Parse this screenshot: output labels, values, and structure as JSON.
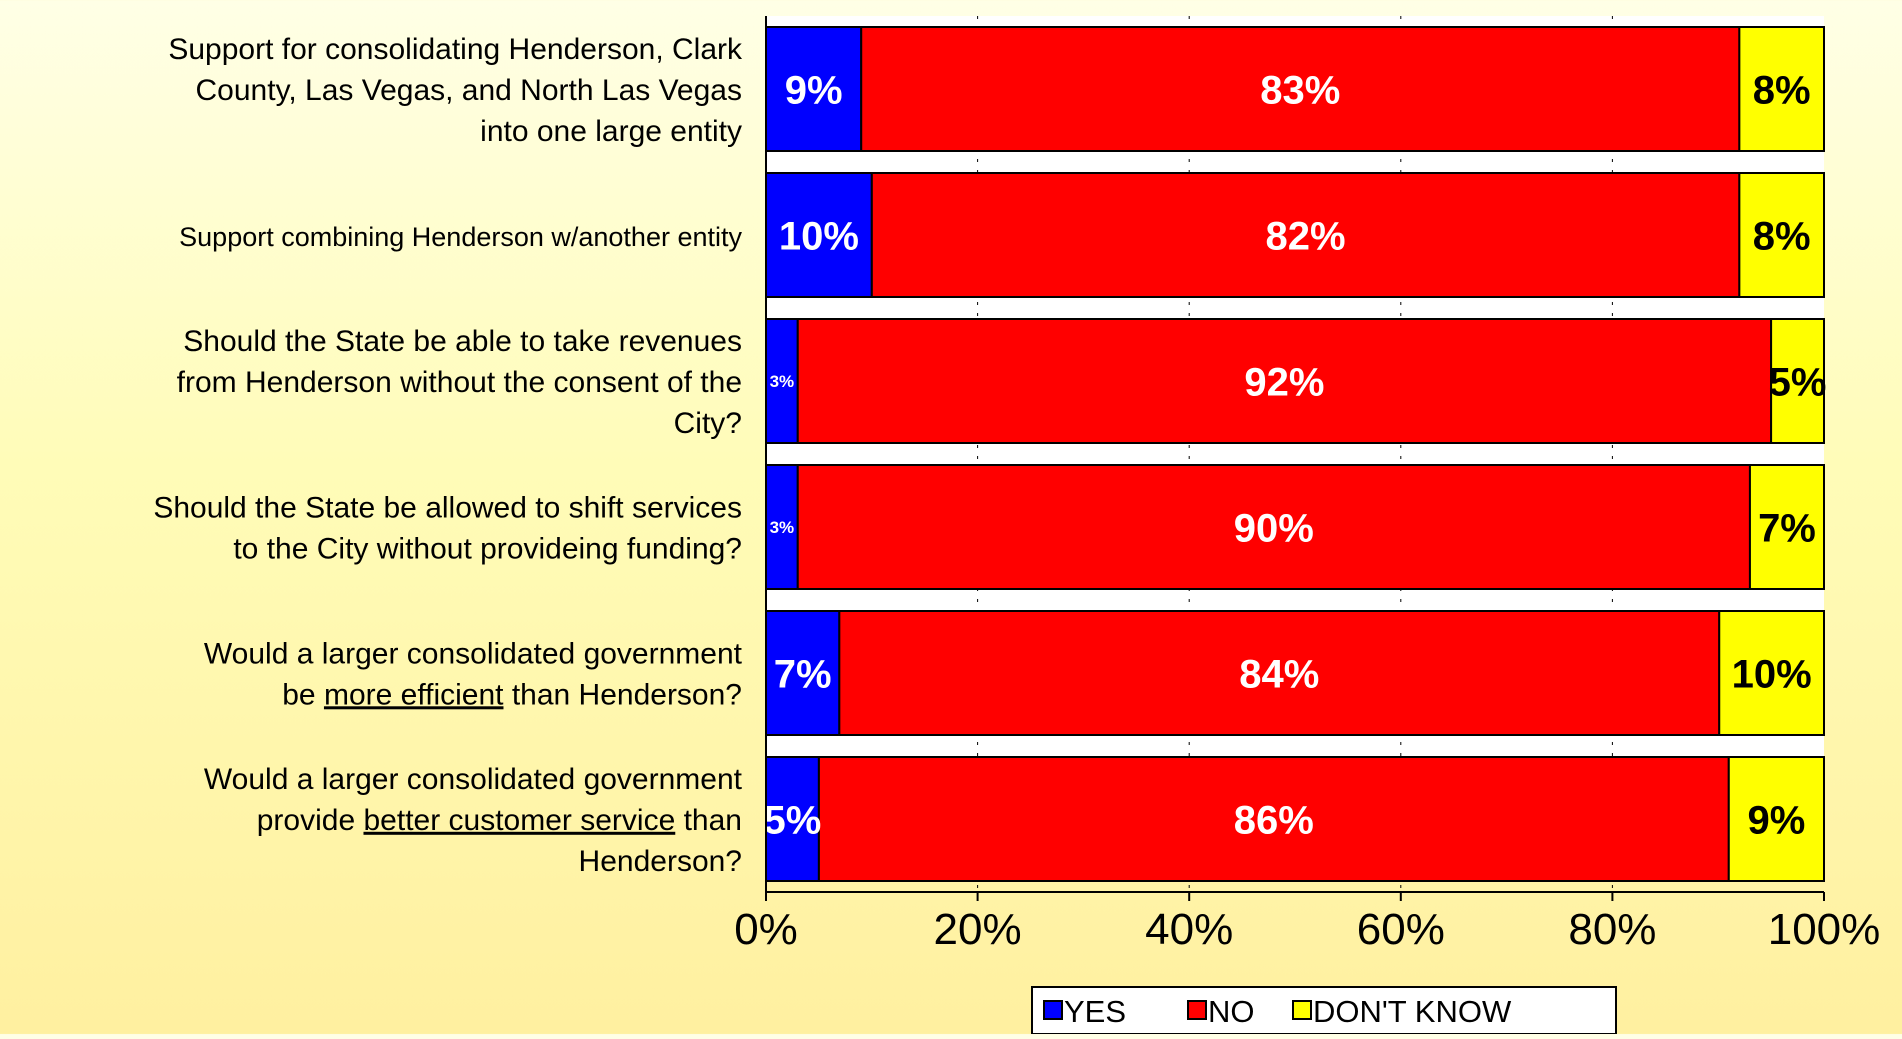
{
  "chart_data": {
    "type": "bar",
    "orientation": "horizontal",
    "stacked": "percent",
    "categories": [
      "Support for consolidating Henderson, Clark County, Las Vegas, and North Las Vegas into one large entity",
      "Support combining Henderson w/another entity",
      "Should the State be able to take revenues from Henderson without the consent of the City?",
      "Should the State be allowed to shift services to the City without provideing funding?",
      "Would a larger consolidated government be more efficient than Henderson?",
      "Would a larger consolidated government provide better customer service than Henderson?"
    ],
    "category_lines": [
      [
        {
          "t": "Support for consolidating Henderson, Clark"
        },
        {
          "t": "County, Las Vegas, and North Las Vegas"
        },
        {
          "t": "into one large entity"
        }
      ],
      [
        {
          "t": "Support combining Henderson w/another entity"
        }
      ],
      [
        {
          "t": "Should the State be able to take revenues"
        },
        {
          "t": "from Henderson without the consent of the"
        },
        {
          "t": "City?"
        }
      ],
      [
        {
          "t": "Should the State be allowed to shift services"
        },
        {
          "t": "to the City without provideing funding?"
        }
      ],
      [
        {
          "t": "Would a larger consolidated government"
        },
        {
          "t": "be ",
          "u": "more efficient",
          "a": " than Henderson?"
        }
      ],
      [
        {
          "t": "Would a larger consolidated government"
        },
        {
          "t": "provide ",
          "u": "better customer service",
          "a": " than"
        },
        {
          "t": "Henderson?"
        }
      ]
    ],
    "series": [
      {
        "name": "YES",
        "color": "#0000ff",
        "label_color": "#ffffff",
        "values": [
          9,
          10,
          3,
          3,
          7,
          5
        ]
      },
      {
        "name": "NO",
        "color": "#ff0000",
        "label_color": "#ffffff",
        "values": [
          83,
          82,
          92,
          90,
          84,
          86
        ]
      },
      {
        "name": "DON'T KNOW",
        "color": "#ffff00",
        "label_color": "#000000",
        "values": [
          8,
          8,
          5,
          7,
          10,
          9
        ]
      }
    ],
    "data_labels": [
      [
        "9%",
        "83%",
        "8%"
      ],
      [
        "10%",
        "82%",
        "8%"
      ],
      [
        "3%",
        "92%",
        "5%"
      ],
      [
        "3%",
        "90%",
        "7%"
      ],
      [
        "7%",
        "84%",
        "10%"
      ],
      [
        "5%",
        "86%",
        "9%"
      ]
    ],
    "x_ticks": [
      "0%",
      "20%",
      "40%",
      "60%",
      "80%",
      "100%"
    ],
    "xlim": [
      0,
      100
    ],
    "grid": "vertical dashed",
    "legend_position": "bottom",
    "title": "",
    "xlabel": "",
    "ylabel": ""
  }
}
